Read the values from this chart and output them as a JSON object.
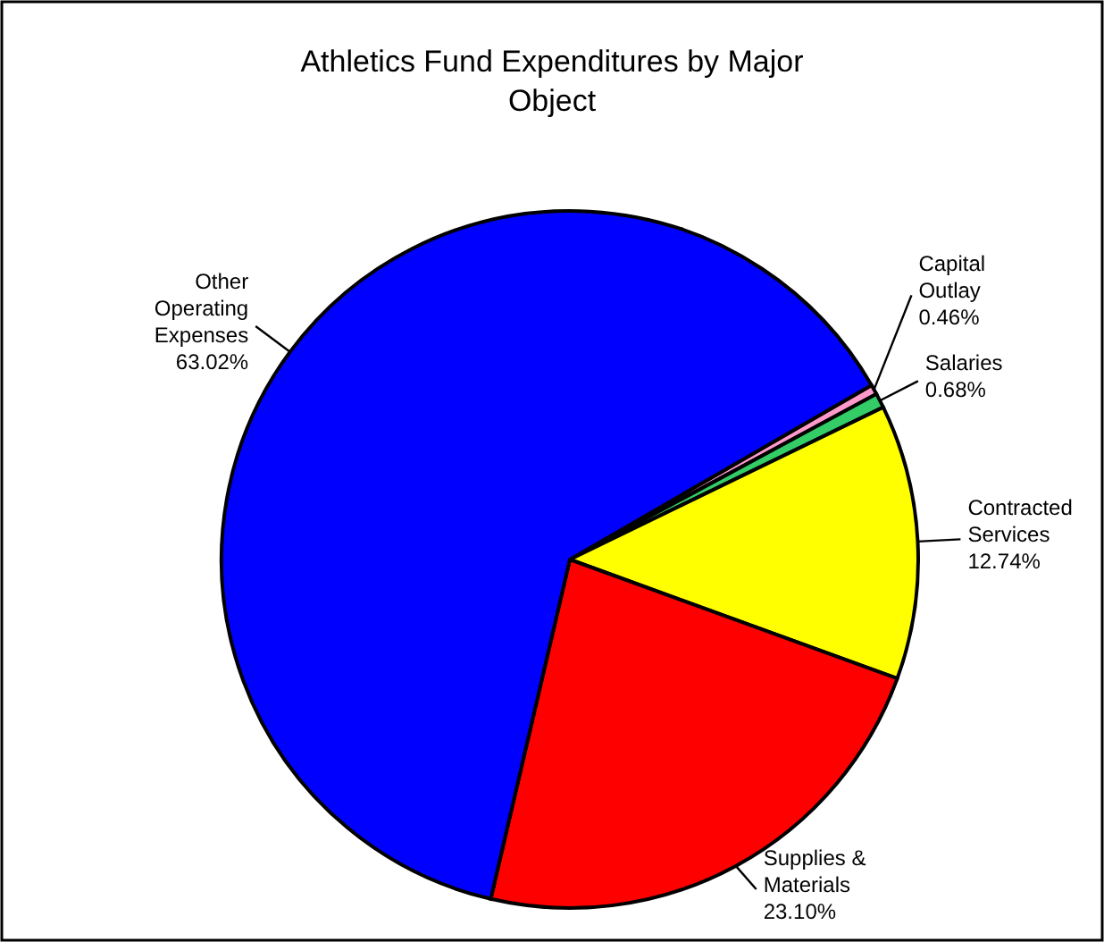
{
  "chart_data": {
    "type": "pie",
    "title": "Athletics Fund Expenditures by Major Object",
    "categories": [
      "Capital Outlay",
      "Salaries",
      "Contracted Services",
      "Supplies & Materials",
      "Other Operating Expenses"
    ],
    "values": [
      0.46,
      0.68,
      12.74,
      23.1,
      63.02
    ],
    "colors": [
      "#ff99cc",
      "#33cc66",
      "#ffff00",
      "#ff0000",
      "#0000ff"
    ],
    "value_labels": [
      "0.46%",
      "0.68%",
      "12.74%",
      "23.10%",
      "63.02%"
    ]
  }
}
